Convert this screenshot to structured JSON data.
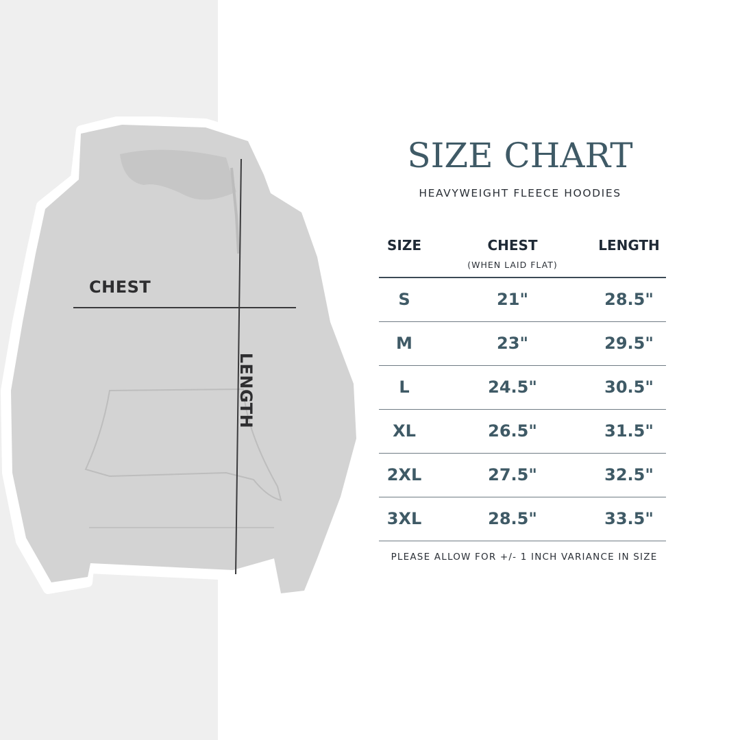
{
  "title": "SIZE CHART",
  "subtitle": "HEAVYWEIGHT FLEECE HOODIES",
  "image_labels": {
    "chest": "CHEST",
    "length": "LENGTH"
  },
  "table": {
    "headers": [
      {
        "label": "SIZE",
        "note": ""
      },
      {
        "label": "CHEST",
        "note": "(WHEN LAID FLAT)"
      },
      {
        "label": "LENGTH",
        "note": ""
      }
    ],
    "rows": [
      {
        "size": "S",
        "chest": "21\"",
        "length": "28.5\""
      },
      {
        "size": "M",
        "chest": "23\"",
        "length": "29.5\""
      },
      {
        "size": "L",
        "chest": "24.5\"",
        "length": "30.5\""
      },
      {
        "size": "XL",
        "chest": "26.5\"",
        "length": "31.5\""
      },
      {
        "size": "2XL",
        "chest": "27.5\"",
        "length": "32.5\""
      },
      {
        "size": "3XL",
        "chest": "28.5\"",
        "length": "33.5\""
      }
    ]
  },
  "footnote": "PLEASE ALLOW FOR +/- 1 INCH VARIANCE IN SIZE",
  "colors": {
    "accent": "#3f5a66",
    "header_text": "#1f2a36",
    "left_panel": "#efefef",
    "hoodie": "#d3d3d3"
  }
}
